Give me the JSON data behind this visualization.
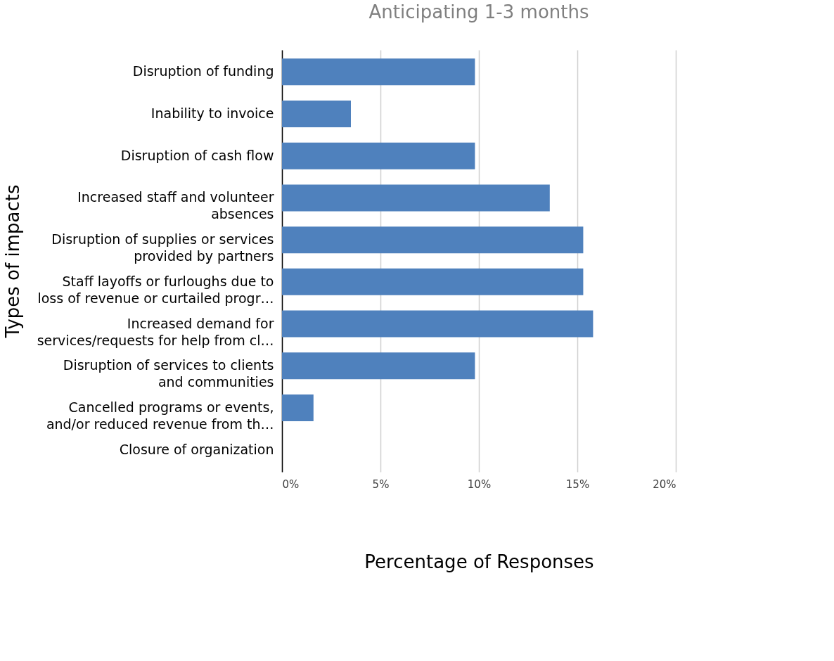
{
  "chart_data": {
    "type": "bar",
    "orientation": "horizontal",
    "title": "Anticipating 1-3 months",
    "xlabel": "Percentage of Responses",
    "ylabel": "Types of impacts",
    "categories": [
      "Disruption of funding",
      "Inability to invoice",
      "Disruption of cash flow",
      "Increased staff and volunteer absences",
      "Disruption of supplies or services provided by partners",
      "Staff layoffs or furloughs due to loss of revenue or curtailed progr…",
      "Increased demand for services/requests for help from cl…",
      "Disruption of services to clients and communities",
      "Cancelled programs or events, and/or reduced revenue from th…",
      "Closure of organization"
    ],
    "values": [
      9.8,
      3.5,
      9.8,
      13.6,
      15.3,
      15.3,
      15.8,
      9.8,
      1.6,
      0
    ],
    "color": "#4f81bd",
    "xlim": [
      0,
      20
    ],
    "xticks": [
      {
        "value": 0,
        "label": "0%"
      },
      {
        "value": 5,
        "label": "5%"
      },
      {
        "value": 10,
        "label": "10%"
      },
      {
        "value": 15,
        "label": "15%"
      },
      {
        "value": 20,
        "label": "20%"
      }
    ],
    "grid": "x"
  }
}
